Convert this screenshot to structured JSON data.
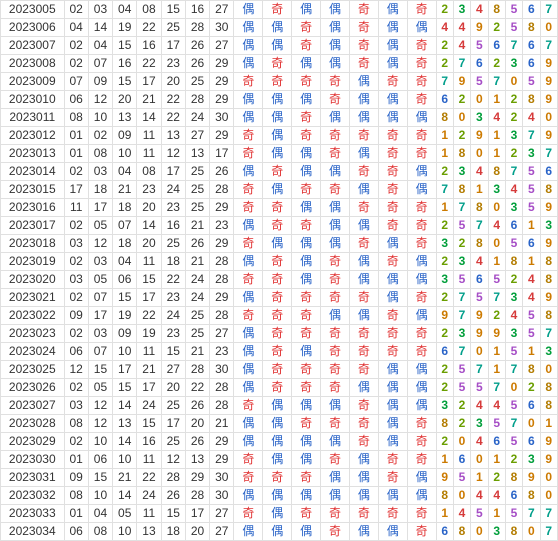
{
  "colors": {
    "even": "#2a64c8",
    "odd": "#e03030",
    "digit": [
      "#cc7a00",
      "#cc7a00",
      "#6a9e00",
      "#009e3a",
      "#d63a3a",
      "#a64ec6",
      "#2a64c8",
      "#009e8a",
      "#b37c00"
    ]
  },
  "labels": {
    "even": "偶",
    "odd": "奇"
  },
  "rows": [
    {
      "issue": "2023005",
      "nums": [
        "02",
        "03",
        "04",
        "08",
        "15",
        "16",
        "27"
      ],
      "par": [
        0,
        1,
        0,
        0,
        1,
        0,
        1
      ],
      "dig": [
        2,
        3,
        4,
        8,
        5,
        6,
        7
      ]
    },
    {
      "issue": "2023006",
      "nums": [
        "04",
        "14",
        "19",
        "22",
        "25",
        "28",
        "30"
      ],
      "par": [
        0,
        0,
        1,
        0,
        1,
        0,
        0
      ],
      "dig": [
        4,
        4,
        9,
        2,
        5,
        8,
        0
      ]
    },
    {
      "issue": "2023007",
      "nums": [
        "02",
        "04",
        "15",
        "16",
        "17",
        "26",
        "27"
      ],
      "par": [
        0,
        0,
        1,
        0,
        1,
        0,
        1
      ],
      "dig": [
        2,
        4,
        5,
        6,
        7,
        6,
        7
      ]
    },
    {
      "issue": "2023008",
      "nums": [
        "02",
        "07",
        "16",
        "22",
        "23",
        "26",
        "29"
      ],
      "par": [
        0,
        1,
        0,
        0,
        1,
        0,
        1
      ],
      "dig": [
        2,
        7,
        6,
        2,
        3,
        6,
        9
      ]
    },
    {
      "issue": "2023009",
      "nums": [
        "07",
        "09",
        "15",
        "17",
        "20",
        "25",
        "29"
      ],
      "par": [
        1,
        1,
        1,
        1,
        0,
        1,
        1
      ],
      "dig": [
        7,
        9,
        5,
        7,
        0,
        5,
        9
      ]
    },
    {
      "issue": "2023010",
      "nums": [
        "06",
        "12",
        "20",
        "21",
        "22",
        "28",
        "29"
      ],
      "par": [
        0,
        0,
        0,
        1,
        0,
        0,
        1
      ],
      "dig": [
        6,
        2,
        0,
        1,
        2,
        8,
        9
      ]
    },
    {
      "issue": "2023011",
      "nums": [
        "08",
        "10",
        "13",
        "14",
        "22",
        "24",
        "30"
      ],
      "par": [
        0,
        0,
        1,
        0,
        0,
        0,
        0
      ],
      "dig": [
        8,
        0,
        3,
        4,
        2,
        4,
        0
      ]
    },
    {
      "issue": "2023012",
      "nums": [
        "01",
        "02",
        "09",
        "11",
        "13",
        "27",
        "29"
      ],
      "par": [
        1,
        0,
        1,
        1,
        1,
        1,
        1
      ],
      "dig": [
        1,
        2,
        9,
        1,
        3,
        7,
        9
      ]
    },
    {
      "issue": "2023013",
      "nums": [
        "01",
        "08",
        "10",
        "11",
        "12",
        "13",
        "17"
      ],
      "par": [
        1,
        0,
        0,
        1,
        0,
        1,
        1
      ],
      "dig": [
        1,
        8,
        0,
        1,
        2,
        3,
        7
      ]
    },
    {
      "issue": "2023014",
      "nums": [
        "02",
        "03",
        "04",
        "08",
        "17",
        "25",
        "26"
      ],
      "par": [
        0,
        1,
        0,
        0,
        1,
        1,
        0
      ],
      "dig": [
        2,
        3,
        4,
        8,
        7,
        5,
        6
      ]
    },
    {
      "issue": "2023015",
      "nums": [
        "17",
        "18",
        "21",
        "23",
        "24",
        "25",
        "28"
      ],
      "par": [
        1,
        0,
        1,
        1,
        0,
        1,
        0
      ],
      "dig": [
        7,
        8,
        1,
        3,
        4,
        5,
        8
      ]
    },
    {
      "issue": "2023016",
      "nums": [
        "11",
        "17",
        "18",
        "20",
        "23",
        "25",
        "29"
      ],
      "par": [
        1,
        1,
        0,
        0,
        1,
        1,
        1
      ],
      "dig": [
        1,
        7,
        8,
        0,
        3,
        5,
        9
      ]
    },
    {
      "issue": "2023017",
      "nums": [
        "02",
        "05",
        "07",
        "14",
        "16",
        "21",
        "23"
      ],
      "par": [
        0,
        1,
        1,
        0,
        0,
        1,
        1
      ],
      "dig": [
        2,
        5,
        7,
        4,
        6,
        1,
        3
      ]
    },
    {
      "issue": "2023018",
      "nums": [
        "03",
        "12",
        "18",
        "20",
        "25",
        "26",
        "29"
      ],
      "par": [
        1,
        0,
        0,
        0,
        1,
        0,
        1
      ],
      "dig": [
        3,
        2,
        8,
        0,
        5,
        6,
        9
      ]
    },
    {
      "issue": "2023019",
      "nums": [
        "02",
        "03",
        "04",
        "11",
        "18",
        "21",
        "28"
      ],
      "par": [
        0,
        1,
        0,
        1,
        0,
        1,
        0
      ],
      "dig": [
        2,
        3,
        4,
        1,
        8,
        1,
        8
      ]
    },
    {
      "issue": "2023020",
      "nums": [
        "03",
        "05",
        "06",
        "15",
        "22",
        "24",
        "28"
      ],
      "par": [
        1,
        1,
        0,
        1,
        0,
        0,
        0
      ],
      "dig": [
        3,
        5,
        6,
        5,
        2,
        4,
        8
      ]
    },
    {
      "issue": "2023021",
      "nums": [
        "02",
        "07",
        "15",
        "17",
        "23",
        "24",
        "29"
      ],
      "par": [
        0,
        1,
        1,
        1,
        1,
        0,
        1
      ],
      "dig": [
        2,
        7,
        5,
        7,
        3,
        4,
        9
      ]
    },
    {
      "issue": "2023022",
      "nums": [
        "09",
        "17",
        "19",
        "22",
        "24",
        "25",
        "28"
      ],
      "par": [
        1,
        1,
        1,
        0,
        0,
        1,
        0
      ],
      "dig": [
        9,
        7,
        9,
        2,
        4,
        5,
        8
      ]
    },
    {
      "issue": "2023023",
      "nums": [
        "02",
        "03",
        "09",
        "19",
        "23",
        "25",
        "27"
      ],
      "par": [
        0,
        1,
        1,
        1,
        1,
        1,
        1
      ],
      "dig": [
        2,
        3,
        9,
        9,
        3,
        5,
        7
      ]
    },
    {
      "issue": "2023024",
      "nums": [
        "06",
        "07",
        "10",
        "11",
        "15",
        "21",
        "23"
      ],
      "par": [
        0,
        1,
        0,
        1,
        1,
        1,
        1
      ],
      "dig": [
        6,
        7,
        0,
        1,
        5,
        1,
        3
      ]
    },
    {
      "issue": "2023025",
      "nums": [
        "12",
        "15",
        "17",
        "21",
        "27",
        "28",
        "30"
      ],
      "par": [
        0,
        1,
        1,
        1,
        1,
        0,
        0
      ],
      "dig": [
        2,
        5,
        7,
        1,
        7,
        8,
        0
      ]
    },
    {
      "issue": "2023026",
      "nums": [
        "02",
        "05",
        "15",
        "17",
        "20",
        "22",
        "28"
      ],
      "par": [
        0,
        1,
        1,
        1,
        0,
        0,
        0
      ],
      "dig": [
        2,
        5,
        5,
        7,
        0,
        2,
        8
      ]
    },
    {
      "issue": "2023027",
      "nums": [
        "03",
        "12",
        "14",
        "24",
        "25",
        "26",
        "28"
      ],
      "par": [
        1,
        0,
        0,
        0,
        1,
        0,
        0
      ],
      "dig": [
        3,
        2,
        4,
        4,
        5,
        6,
        8
      ]
    },
    {
      "issue": "2023028",
      "nums": [
        "08",
        "12",
        "13",
        "15",
        "17",
        "20",
        "21"
      ],
      "par": [
        0,
        0,
        1,
        1,
        1,
        0,
        1
      ],
      "dig": [
        8,
        2,
        3,
        5,
        7,
        0,
        1
      ]
    },
    {
      "issue": "2023029",
      "nums": [
        "02",
        "10",
        "14",
        "16",
        "25",
        "26",
        "29"
      ],
      "par": [
        0,
        0,
        0,
        0,
        1,
        0,
        1
      ],
      "dig": [
        2,
        0,
        4,
        6,
        5,
        6,
        9
      ]
    },
    {
      "issue": "2023030",
      "nums": [
        "01",
        "06",
        "10",
        "11",
        "12",
        "13",
        "29"
      ],
      "par": [
        1,
        0,
        0,
        1,
        0,
        1,
        1
      ],
      "dig": [
        1,
        6,
        0,
        1,
        2,
        3,
        9
      ]
    },
    {
      "issue": "2023031",
      "nums": [
        "09",
        "15",
        "21",
        "22",
        "28",
        "29",
        "30"
      ],
      "par": [
        1,
        1,
        1,
        0,
        0,
        1,
        0
      ],
      "dig": [
        9,
        5,
        1,
        2,
        8,
        9,
        0
      ]
    },
    {
      "issue": "2023032",
      "nums": [
        "08",
        "10",
        "14",
        "24",
        "26",
        "28",
        "30"
      ],
      "par": [
        0,
        0,
        0,
        0,
        0,
        0,
        0
      ],
      "dig": [
        8,
        0,
        4,
        4,
        6,
        8,
        0
      ]
    },
    {
      "issue": "2023033",
      "nums": [
        "01",
        "04",
        "05",
        "11",
        "15",
        "17",
        "27"
      ],
      "par": [
        1,
        0,
        1,
        1,
        1,
        1,
        1
      ],
      "dig": [
        1,
        4,
        5,
        1,
        5,
        7,
        7
      ]
    },
    {
      "issue": "2023034",
      "nums": [
        "06",
        "08",
        "10",
        "13",
        "18",
        "20",
        "27"
      ],
      "par": [
        0,
        0,
        0,
        1,
        0,
        0,
        1
      ],
      "dig": [
        6,
        8,
        0,
        3,
        8,
        0,
        7
      ]
    }
  ]
}
